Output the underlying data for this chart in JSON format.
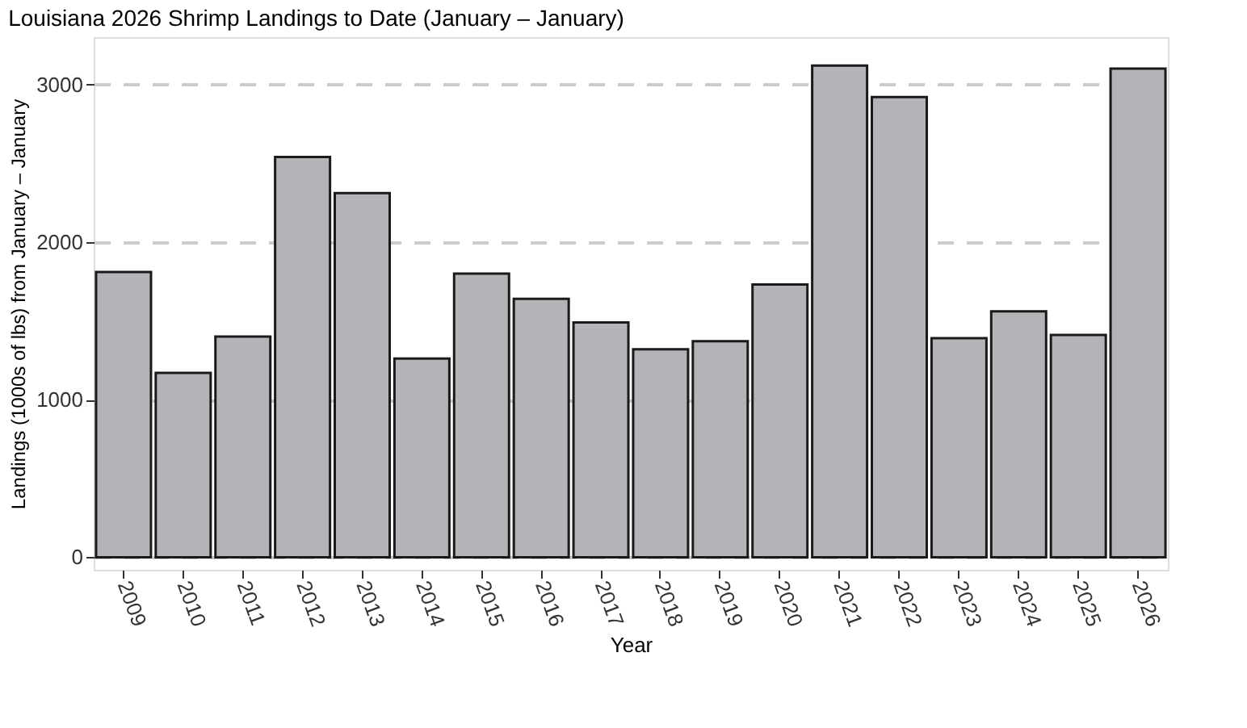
{
  "chart_data": {
    "type": "bar",
    "title": "Louisiana 2026 Shrimp Landings to Date (January – January)",
    "xlabel": "Year",
    "ylabel": "Landings (1000s of lbs) from January – January",
    "categories": [
      "2009",
      "2010",
      "2011",
      "2012",
      "2013",
      "2014",
      "2015",
      "2016",
      "2017",
      "2018",
      "2019",
      "2020",
      "2021",
      "2022",
      "2023",
      "2024",
      "2025",
      "2026"
    ],
    "values": [
      1810,
      1170,
      1400,
      2540,
      2310,
      1260,
      1800,
      1640,
      1490,
      1320,
      1370,
      1730,
      3120,
      2920,
      1390,
      1560,
      1410,
      3100
    ],
    "color": "#b3b4b7",
    "ylim": [
      -80,
      3300
    ],
    "yticks": [
      0,
      1000,
      2000,
      3000
    ],
    "grid": "y"
  }
}
